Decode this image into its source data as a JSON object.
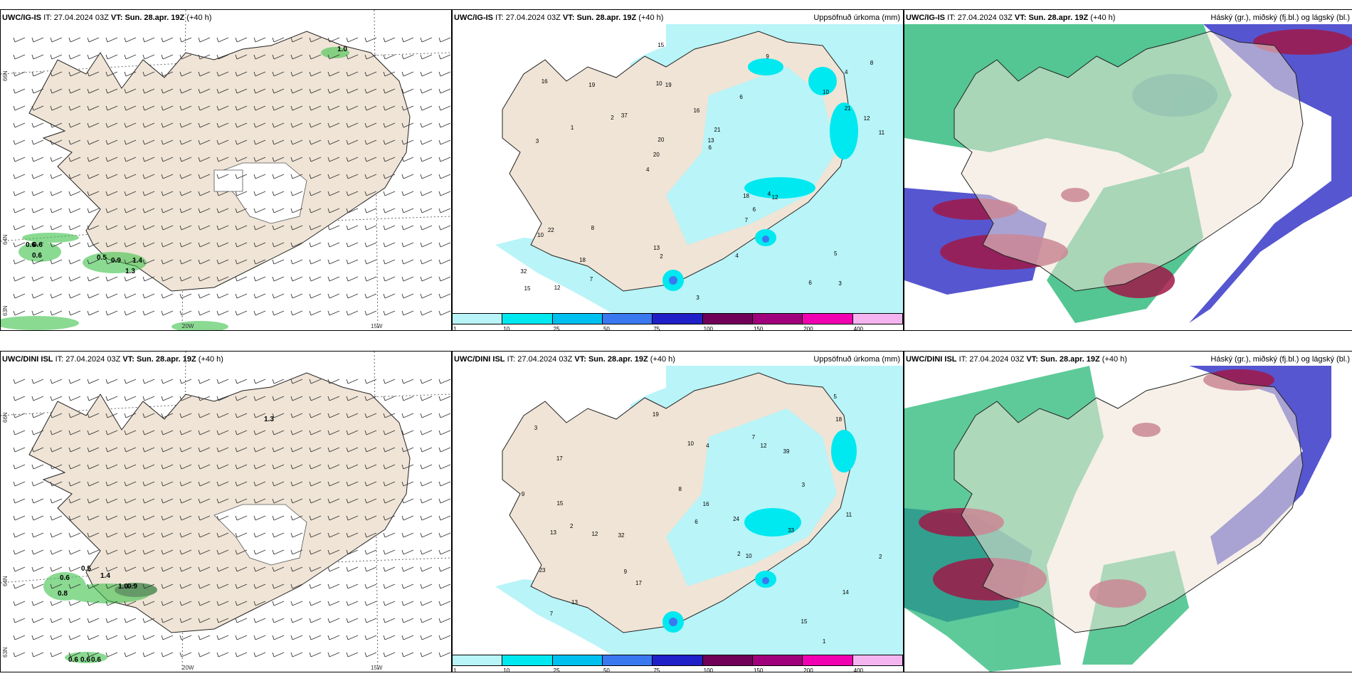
{
  "panels": [
    {
      "model": "UWC/IG-IS",
      "it_label": "IT:",
      "it": "27.04.2024 03Z",
      "vt_label": "VT:",
      "vt": "Sun. 28.apr. 19Z",
      "lead": "(+40 h)",
      "title_right": ""
    },
    {
      "model": "UWC/IG-IS",
      "it_label": "IT:",
      "it": "27.04.2024 03Z",
      "vt_label": "VT:",
      "vt": "Sun. 28.apr. 19Z",
      "lead": "(+40 h)",
      "title_right": "Uppsöfnuð úrkoma (mm)"
    },
    {
      "model": "UWC/IG-IS",
      "it_label": "IT:",
      "it": "27.04.2024 03Z",
      "vt_label": "VT:",
      "vt": "Sun. 28.apr. 19Z",
      "lead": "(+40 h)",
      "title_right": "Háský (gr.), miðský (fj.bl.) og lágský (bl.)"
    },
    {
      "model": "UWC/DINI ISL",
      "it_label": "IT:",
      "it": "27.04.2024 03Z",
      "vt_label": "VT:",
      "vt": "Sun. 28.apr. 19Z",
      "lead": "(+40 h)",
      "title_right": ""
    },
    {
      "model": "UWC/DINI ISL",
      "it_label": "IT:",
      "it": "27.04.2024 03Z",
      "vt_label": "VT:",
      "vt": "Sun. 28.apr. 19Z",
      "lead": "(+40 h)",
      "title_right": "Uppsöfnuð úrkoma (mm)"
    },
    {
      "model": "UWC/DINI ISL",
      "it_label": "IT:",
      "it": "27.04.2024 03Z",
      "vt_label": "VT:",
      "vt": "Sun. 28.apr. 19Z",
      "lead": "(+40 h)",
      "title_right": "Háský (gr.), miðský (fj.bl.) og lágský (bl.)"
    }
  ],
  "axes": {
    "lat66": "66N",
    "lat64": "64N",
    "lat63": "63N",
    "lon20": "20W",
    "lon15": "15W"
  },
  "colorbar": {
    "labels": [
      "1",
      "10",
      "25",
      "50",
      "75",
      "100",
      "150",
      "200",
      "400"
    ],
    "colors": [
      "#b8f4f8",
      "#00e8f0",
      "#00c0f0",
      "#3a78f0",
      "#2020c8",
      "#700058",
      "#a0007c",
      "#f000b0",
      "#f4b4f0"
    ]
  },
  "wind_labels_top": [
    "1.0",
    "0.6",
    "0.6",
    "0.6",
    "0.5",
    "0.9",
    "1.4",
    "1.3"
  ],
  "wind_labels_bottom": [
    "1.3",
    "0.6",
    "0.5",
    "1.4",
    "0.8",
    "1.0",
    "0.9",
    "0.6",
    "0.6",
    "0.6"
  ],
  "precip_top": [
    "3",
    "3",
    "4",
    "4",
    "6",
    "12",
    "10",
    "16",
    "22",
    "37",
    "32",
    "18",
    "19",
    "21",
    "12",
    "16",
    "15",
    "11",
    "18",
    "21",
    "20",
    "13",
    "20",
    "19",
    "9",
    "8",
    "6",
    "5",
    "4",
    "3",
    "2",
    "1",
    "7",
    "7",
    "12",
    "13",
    "15",
    "2",
    "6",
    "10",
    "10",
    "8",
    "6",
    "4"
  ],
  "precip_bottom": [
    "1",
    "2",
    "2",
    "3",
    "14",
    "17",
    "13",
    "32",
    "39",
    "10",
    "12",
    "15",
    "17",
    "19",
    "24",
    "23",
    "33",
    "16",
    "9",
    "7",
    "5",
    "4",
    "3",
    "2",
    "11",
    "15",
    "12",
    "6",
    "8",
    "18",
    "10",
    "13",
    "9",
    "7"
  ],
  "colors": {
    "land": "#efe4d6",
    "sea": "#ffffff",
    "precip_light": "#b8f4f8",
    "precip_mid": "#00e8f0",
    "high_cloud": "#28b878",
    "mid_cloud": "#3838c8",
    "low_cloud": "#a01848"
  }
}
